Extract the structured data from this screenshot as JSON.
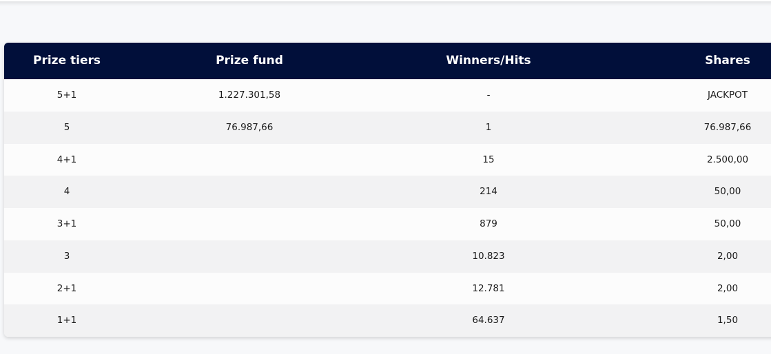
{
  "table": {
    "headers": {
      "tier": "Prize tiers",
      "fund": "Prize fund",
      "winners": "Winners/Hits",
      "shares": "Shares"
    },
    "rows": [
      {
        "tier": "5+1",
        "fund": "1.227.301,58",
        "winners": "-",
        "shares": "JACKPOT"
      },
      {
        "tier": "5",
        "fund": "76.987,66",
        "winners": "1",
        "shares": "76.987,66"
      },
      {
        "tier": "4+1",
        "fund": "",
        "winners": "15",
        "shares": "2.500,00"
      },
      {
        "tier": "4",
        "fund": "",
        "winners": "214",
        "shares": "50,00"
      },
      {
        "tier": "3+1",
        "fund": "",
        "winners": "879",
        "shares": "50,00"
      },
      {
        "tier": "3",
        "fund": "",
        "winners": "10.823",
        "shares": "2,00"
      },
      {
        "tier": "2+1",
        "fund": "",
        "winners": "12.781",
        "shares": "2,00"
      },
      {
        "tier": "1+1",
        "fund": "",
        "winners": "64.637",
        "shares": "1,50"
      }
    ]
  },
  "colors": {
    "header_background": "#010f3a",
    "header_text": "#ffffff",
    "row_alt": "#f2f2f3",
    "row_plain": "#fcfcfc"
  }
}
